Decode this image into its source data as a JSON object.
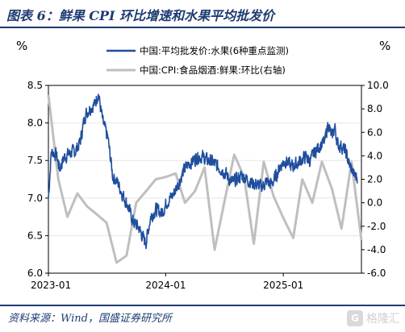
{
  "figure": {
    "title": "图表 6：鲜果 CPI 环比增速和水果平均批发价",
    "source": "资料来源：Wind，国盛证券研究所",
    "watermark": {
      "logo": "G",
      "text": "格隆汇"
    }
  },
  "chart_data": {
    "type": "line",
    "x_ticks": [
      "2023-01",
      "2024-01",
      "2025-01"
    ],
    "x_range": [
      "2023-01-01",
      "2025-09-01"
    ],
    "left_axis": {
      "unit": "%",
      "range": [
        6.0,
        8.5
      ],
      "ticks": [
        "6.0",
        "6.5",
        "7.0",
        "7.5",
        "8.0",
        "8.5"
      ]
    },
    "right_axis": {
      "unit": "%",
      "range": [
        -6.0,
        10.0
      ],
      "ticks": [
        "-6.0",
        "-4.0",
        "-2.0",
        "0.0",
        "2.0",
        "4.0",
        "6.0",
        "8.0",
        "10.0"
      ]
    },
    "legend_position": "top-right",
    "series": [
      {
        "name": "中国:平均批发价:水果(6种重点监测)",
        "axis": "left",
        "color": "#1f4e9e",
        "frequency": "daily",
        "anchors": [
          [
            "2023-01-01",
            7.0
          ],
          [
            "2023-01-10",
            7.62
          ],
          [
            "2023-01-25",
            7.58
          ],
          [
            "2023-02-05",
            7.4
          ],
          [
            "2023-02-20",
            7.55
          ],
          [
            "2023-03-10",
            7.6
          ],
          [
            "2023-03-25",
            7.62
          ],
          [
            "2023-04-10",
            7.75
          ],
          [
            "2023-04-25",
            8.1
          ],
          [
            "2023-05-10",
            8.2
          ],
          [
            "2023-05-25",
            8.25
          ],
          [
            "2023-06-05",
            8.4
          ],
          [
            "2023-06-20",
            8.0
          ],
          [
            "2023-07-05",
            7.8
          ],
          [
            "2023-07-20",
            7.3
          ],
          [
            "2023-08-05",
            7.2
          ],
          [
            "2023-08-20",
            7.05
          ],
          [
            "2023-09-05",
            6.9
          ],
          [
            "2023-09-20",
            6.7
          ],
          [
            "2023-10-10",
            6.6
          ],
          [
            "2023-10-25",
            6.45
          ],
          [
            "2023-11-01",
            6.42
          ],
          [
            "2023-11-15",
            6.75
          ],
          [
            "2023-12-01",
            6.85
          ],
          [
            "2023-12-20",
            6.8
          ],
          [
            "2024-01-05",
            6.95
          ],
          [
            "2024-01-25",
            7.05
          ],
          [
            "2024-02-10",
            7.2
          ],
          [
            "2024-02-25",
            7.35
          ],
          [
            "2024-03-10",
            7.45
          ],
          [
            "2024-03-25",
            7.5
          ],
          [
            "2024-04-10",
            7.55
          ],
          [
            "2024-04-25",
            7.55
          ],
          [
            "2024-05-10",
            7.5
          ],
          [
            "2024-05-25",
            7.48
          ],
          [
            "2024-06-10",
            7.42
          ],
          [
            "2024-06-25",
            7.38
          ],
          [
            "2024-07-10",
            7.3
          ],
          [
            "2024-07-25",
            7.2
          ],
          [
            "2024-08-10",
            7.25
          ],
          [
            "2024-08-25",
            7.3
          ],
          [
            "2024-09-10",
            7.25
          ],
          [
            "2024-09-25",
            7.2
          ],
          [
            "2024-10-10",
            7.18
          ],
          [
            "2024-10-25",
            7.15
          ],
          [
            "2024-11-10",
            7.22
          ],
          [
            "2024-11-25",
            7.18
          ],
          [
            "2024-12-10",
            7.3
          ],
          [
            "2024-12-25",
            7.45
          ],
          [
            "2025-01-10",
            7.5
          ],
          [
            "2025-01-25",
            7.42
          ],
          [
            "2025-02-10",
            7.45
          ],
          [
            "2025-02-25",
            7.5
          ],
          [
            "2025-03-10",
            7.55
          ],
          [
            "2025-03-25",
            7.5
          ],
          [
            "2025-04-10",
            7.62
          ],
          [
            "2025-04-25",
            7.7
          ],
          [
            "2025-05-10",
            7.75
          ],
          [
            "2025-05-20",
            8.0
          ],
          [
            "2025-06-01",
            7.8
          ],
          [
            "2025-06-10",
            7.95
          ],
          [
            "2025-06-20",
            7.7
          ],
          [
            "2025-07-01",
            7.7
          ],
          [
            "2025-07-15",
            7.6
          ],
          [
            "2025-07-25",
            7.45
          ],
          [
            "2025-08-10",
            7.3
          ],
          [
            "2025-08-20",
            7.28
          ]
        ]
      },
      {
        "name": "中国:CPI:食品烟酒:鲜果:环比(右轴)",
        "axis": "right",
        "color": "#bfbfbf",
        "frequency": "monthly",
        "points": [
          [
            "2023-01",
            9.2
          ],
          [
            "2023-02",
            2.0
          ],
          [
            "2023-03",
            -1.2
          ],
          [
            "2023-04",
            0.8
          ],
          [
            "2023-05",
            -0.3
          ],
          [
            "2023-06",
            -1.0
          ],
          [
            "2023-07",
            -1.7
          ],
          [
            "2023-08",
            -5.1
          ],
          [
            "2023-09",
            -4.5
          ],
          [
            "2023-10",
            0.0
          ],
          [
            "2023-11",
            1.0
          ],
          [
            "2023-12",
            2.0
          ],
          [
            "2024-01",
            2.2
          ],
          [
            "2024-02",
            2.5
          ],
          [
            "2024-03",
            0.0
          ],
          [
            "2024-04",
            1.0
          ],
          [
            "2024-05",
            3.0
          ],
          [
            "2024-06",
            -4.0
          ],
          [
            "2024-07",
            0.0
          ],
          [
            "2024-08",
            4.1
          ],
          [
            "2024-09",
            2.2
          ],
          [
            "2024-10",
            -3.5
          ],
          [
            "2024-11",
            3.5
          ],
          [
            "2024-12",
            0.6
          ],
          [
            "2025-01",
            -1.3
          ],
          [
            "2025-02",
            -3.0
          ],
          [
            "2025-03",
            2.0
          ],
          [
            "2025-04",
            0.0
          ],
          [
            "2025-05",
            3.5
          ],
          [
            "2025-06",
            1.2
          ],
          [
            "2025-07",
            -2.2
          ],
          [
            "2025-08",
            3.5
          ],
          [
            "2025-09",
            -3.2
          ]
        ]
      }
    ]
  }
}
